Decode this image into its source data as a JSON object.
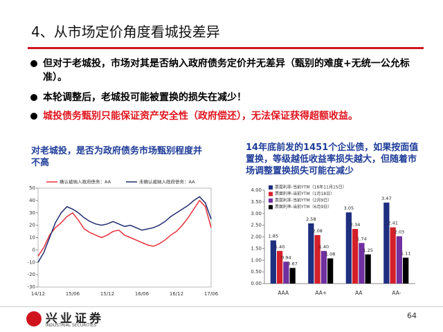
{
  "header": {
    "title": "4、从市场定价角度看城投差异"
  },
  "bullets": [
    {
      "text": "但对于老城投，市场对其是否纳入政府债务定价并无差异（甄别的难度+无统一公允标准）。",
      "color": "#000000"
    },
    {
      "text": "本轮调整后，老城投可能被置换的损失在减少！",
      "color": "#000000"
    },
    {
      "text": "城投债务甄别只能保证资产安全性（政府偿还），无法保证获得超额收益。",
      "color": "#e0141e"
    }
  ],
  "chart_data": [
    {
      "type": "line",
      "title": "对老城投，是否为政府债务市场甄别程度并不高",
      "categories": [
        "14/12",
        null,
        null,
        null,
        null,
        null,
        "15/06",
        null,
        null,
        null,
        null,
        null,
        "15/12",
        null,
        null,
        null,
        null,
        null,
        "16/06",
        null,
        null,
        null,
        null,
        null,
        "16/12",
        null,
        null,
        null,
        null,
        null,
        "17/06"
      ],
      "series": [
        {
          "name": "确认被纳入政府债务：AA",
          "color": "#e8303a",
          "values": [
            -5,
            2,
            12,
            18,
            22,
            27,
            30,
            24,
            17,
            14,
            12,
            10,
            12,
            15,
            16,
            12,
            10,
            8,
            6,
            4,
            3,
            5,
            8,
            12,
            15,
            20,
            26,
            33,
            40,
            35,
            18
          ]
        },
        {
          "name": "未确认被纳入政府债务：AA",
          "color": "#1f2a6e",
          "values": [
            -10,
            -2,
            10,
            22,
            30,
            35,
            33,
            30,
            26,
            23,
            21,
            20,
            21,
            23,
            21,
            19,
            20,
            18,
            16,
            17,
            18,
            20,
            23,
            27,
            30,
            33,
            36,
            40,
            43,
            38,
            25
          ]
        }
      ],
      "ylim": [
        -30,
        50
      ],
      "yticks": [
        -30,
        -20,
        -10,
        0,
        10,
        20,
        30,
        40,
        50
      ],
      "legend": "top",
      "grid": false
    },
    {
      "type": "bar",
      "title": "14年底前发的1451个企业债，如果按面值置换，等级越低收益率损失越大，但随着市场调整置换损失可能在减少",
      "categories": [
        "AAA",
        "AA+",
        "AA",
        "AA-"
      ],
      "series": [
        {
          "name": "票面利率-当前YTM（16年11月15日）",
          "color": "#1f2f80",
          "values": [
            1.85,
            2.58,
            3.05,
            3.47
          ],
          "value_labels": [
            "1.85",
            "2.58",
            "3.05",
            "3.47"
          ]
        },
        {
          "name": "票面利率-当前YTM（1月18日）",
          "color": "#d4202a",
          "values": [
            1.4,
            2.08,
            2.34,
            2.41
          ],
          "value_labels": [
            "1.40",
            "2.08",
            "2.34",
            "2.41"
          ]
        },
        {
          "name": "票面利率-当前YTM（2月9日）",
          "color": "#7030a0",
          "values": [
            0.94,
            1.4,
            1.74,
            2.03
          ],
          "value_labels": [
            "0.94",
            "1.40",
            "1.74",
            "2.03"
          ]
        },
        {
          "name": "票面利率-当前YTM（6月9日）",
          "color": "#000000",
          "values": [
            0.67,
            1.08,
            1.25,
            1.11
          ],
          "value_labels": [
            "0.67",
            "1.08",
            "1.25",
            "1.11"
          ]
        }
      ],
      "ylim": [
        0,
        4
      ],
      "yticks": [
        {
          "value": 0,
          "label": "0.00"
        },
        {
          "value": 0.5,
          "label": "0.50"
        },
        {
          "value": 1,
          "label": "1.00"
        },
        {
          "value": 1.5,
          "label": "1.50"
        },
        {
          "value": 2,
          "label": "2.00"
        },
        {
          "value": 2.5,
          "label": "2.50"
        },
        {
          "value": 3,
          "label": "3.00"
        },
        {
          "value": 3.5,
          "label": "3.50"
        },
        {
          "value": 4,
          "label": "4.00"
        }
      ],
      "legend": "upper left",
      "grid": false
    }
  ],
  "footer": {
    "company": "兴业证券",
    "company_en": "INDUSTRIAL SECURITIES",
    "page": "64"
  }
}
